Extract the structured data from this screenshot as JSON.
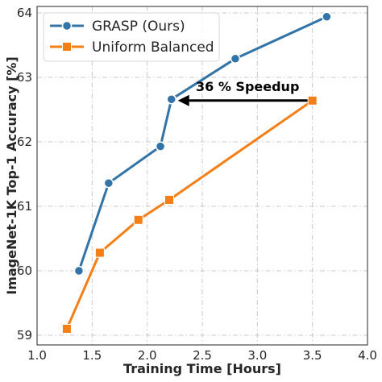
{
  "chart_data": {
    "type": "line",
    "title": "",
    "xlabel": "Training Time [Hours]",
    "ylabel": "ImageNet-1K Top-1 Accuracy [%]",
    "xlim": [
      1.0,
      4.0
    ],
    "ylim": [
      58.85,
      64.1
    ],
    "xticks": [
      1.0,
      1.5,
      2.0,
      2.5,
      3.0,
      3.5,
      4.0
    ],
    "xtick_labels": [
      "1.0",
      "1.5",
      "2.0",
      "2.5",
      "3.0",
      "3.5",
      "4.0"
    ],
    "yticks": [
      59,
      60,
      61,
      62,
      63,
      64
    ],
    "ytick_labels": [
      "59",
      "60",
      "61",
      "62",
      "63",
      "64"
    ],
    "grid": true,
    "legend_position": "top-left",
    "series": [
      {
        "name": "GRASP (Ours)",
        "marker": "circle",
        "color": "#3274a8",
        "x": [
          1.38,
          1.65,
          2.12,
          2.22,
          2.8,
          3.63
        ],
        "y": [
          60.0,
          61.36,
          61.93,
          62.66,
          63.29,
          63.94
        ]
      },
      {
        "name": "Uniform Balanced",
        "marker": "square",
        "color": "#f57f17",
        "x": [
          1.27,
          1.57,
          1.92,
          2.2,
          3.5
        ],
        "y": [
          59.1,
          60.28,
          60.79,
          61.1,
          62.64
        ]
      }
    ],
    "annotations": [
      {
        "text": "36 % Speedup",
        "arrow_from": [
          3.5,
          62.64
        ],
        "arrow_to": [
          2.22,
          62.64
        ]
      }
    ]
  }
}
